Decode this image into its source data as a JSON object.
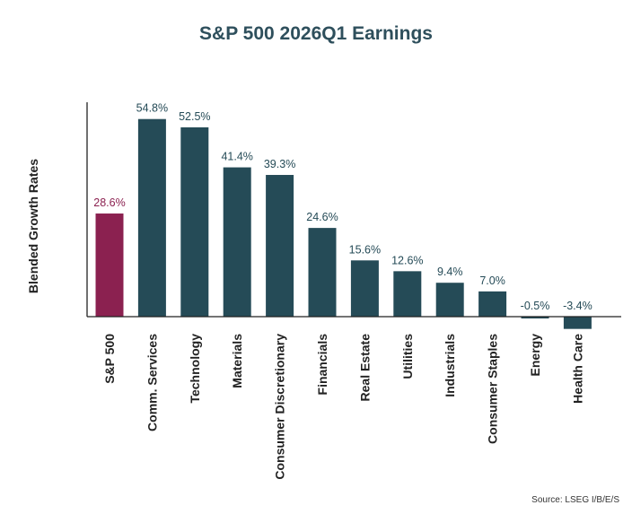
{
  "chart_data": {
    "type": "bar",
    "title": "S&P 500 2026Q1 Earnings",
    "ylabel": "Blended Growth Rates",
    "xlabel": "",
    "source": "Source: LSEG I/B/E/S",
    "categories": [
      "S&P 500",
      "Comm. Services",
      "Technology",
      "Materials",
      "Consumer Discretionary",
      "Financials",
      "Real Estate",
      "Utilities",
      "Industrials",
      "Consumer Staples",
      "Energy",
      "Health Care"
    ],
    "values": [
      28.6,
      54.8,
      52.5,
      41.4,
      39.3,
      24.6,
      15.6,
      12.6,
      9.4,
      7.0,
      -0.5,
      -3.4
    ],
    "value_labels": [
      "28.6%",
      "54.8%",
      "52.5%",
      "41.4%",
      "39.3%",
      "24.6%",
      "15.6%",
      "12.6%",
      "9.4%",
      "7.0%",
      "-0.5%",
      "-3.4%"
    ],
    "ylim": [
      -3.4,
      56
    ],
    "grid": false,
    "colors": {
      "highlight": "#8b2150",
      "bar": "#254b57",
      "title": "#2e4f5c",
      "highlight_label": "#8b2150",
      "label": "#254b57"
    }
  }
}
